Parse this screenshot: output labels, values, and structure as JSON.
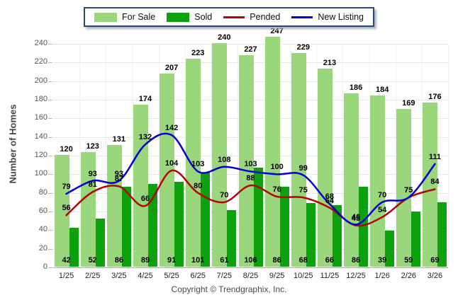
{
  "legend": {
    "items": [
      {
        "label": "For Sale",
        "type": "bar",
        "color": "#9AD67C"
      },
      {
        "label": "Sold",
        "type": "bar",
        "color": "#0DA20D"
      },
      {
        "label": "Pended",
        "type": "line",
        "color": "#B40404"
      },
      {
        "label": "New Listing",
        "type": "line",
        "color": "#0000D6"
      }
    ]
  },
  "footer": "Copyright © Trendgraphix, Inc.",
  "chart_data": {
    "type": "bar",
    "title": "",
    "xlabel": "",
    "ylabel": "Number of Homes",
    "ylim": [
      0,
      260
    ],
    "yticks": [
      0,
      20,
      40,
      60,
      80,
      100,
      120,
      140,
      160,
      180,
      200,
      220,
      240
    ],
    "grid": true,
    "legend_position": "top",
    "categories": [
      "1/25",
      "2/25",
      "3/25",
      "4/25",
      "5/25",
      "6/25",
      "7/25",
      "8/25",
      "9/25",
      "10/25",
      "11/25",
      "12/25",
      "1/26",
      "2/26",
      "3/26"
    ],
    "series": [
      {
        "name": "For Sale",
        "kind": "bar",
        "color": "#9AD67C",
        "values": [
          120,
          123,
          131,
          174,
          207,
          223,
          240,
          227,
          247,
          229,
          213,
          186,
          184,
          169,
          176
        ]
      },
      {
        "name": "Sold",
        "kind": "bar",
        "color": "#0DA20D",
        "values": [
          42,
          52,
          86,
          89,
          91,
          101,
          61,
          106,
          86,
          68,
          66,
          86,
          39,
          59,
          69
        ]
      },
      {
        "name": "Pended",
        "kind": "line",
        "color": "#B40404",
        "values": [
          56,
          81,
          87,
          66,
          104,
          80,
          70,
          88,
          76,
          75,
          64,
          45,
          54,
          75,
          84
        ]
      },
      {
        "name": "New Listing",
        "kind": "line",
        "color": "#0000D6",
        "values": [
          79,
          93,
          93,
          132,
          142,
          103,
          108,
          103,
          100,
          99,
          68,
          46,
          70,
          75,
          111
        ]
      }
    ]
  }
}
